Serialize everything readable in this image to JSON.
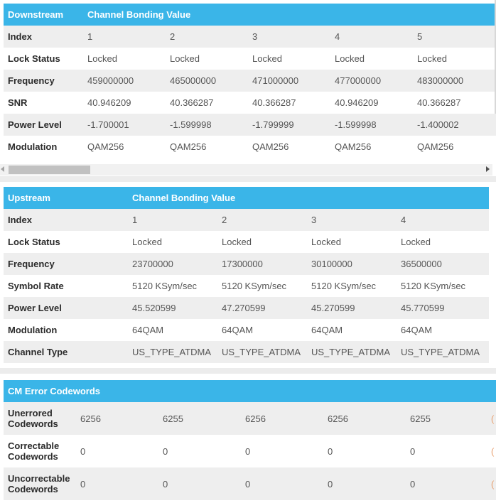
{
  "downstream": {
    "title": "Downstream",
    "value_header": "Channel Bonding Value",
    "rows": [
      {
        "label": "Index",
        "values": [
          "1",
          "2",
          "3",
          "4",
          "5"
        ]
      },
      {
        "label": "Lock Status",
        "values": [
          "Locked",
          "Locked",
          "Locked",
          "Locked",
          "Locked"
        ]
      },
      {
        "label": "Frequency",
        "values": [
          "459000000",
          "465000000",
          "471000000",
          "477000000",
          "483000000"
        ]
      },
      {
        "label": "SNR",
        "values": [
          "40.946209",
          "40.366287",
          "40.366287",
          "40.946209",
          "40.366287"
        ]
      },
      {
        "label": "Power Level",
        "values": [
          "-1.700001",
          "-1.599998",
          "-1.799999",
          "-1.599998",
          "-1.400002"
        ]
      },
      {
        "label": "Modulation",
        "values": [
          "QAM256",
          "QAM256",
          "QAM256",
          "QAM256",
          "QAM256"
        ]
      }
    ],
    "scrollbar": {
      "scroll_position": 0
    }
  },
  "upstream": {
    "title": "Upstream",
    "value_header": "Channel Bonding Value",
    "rows": [
      {
        "label": "Index",
        "values": [
          "1",
          "2",
          "3",
          "4"
        ]
      },
      {
        "label": "Lock Status",
        "values": [
          "Locked",
          "Locked",
          "Locked",
          "Locked"
        ]
      },
      {
        "label": "Frequency",
        "values": [
          "23700000",
          "17300000",
          "30100000",
          "36500000"
        ]
      },
      {
        "label": "Symbol Rate",
        "values": [
          "5120 KSym/sec",
          "5120 KSym/sec",
          "5120 KSym/sec",
          "5120 KSym/sec"
        ]
      },
      {
        "label": "Power Level",
        "values": [
          "45.520599",
          "47.270599",
          "45.270599",
          "45.770599"
        ]
      },
      {
        "label": "Modulation",
        "values": [
          "64QAM",
          "64QAM",
          "64QAM",
          "64QAM"
        ]
      },
      {
        "label": "Channel Type",
        "values": [
          "US_TYPE_ATDMA",
          "US_TYPE_ATDMA",
          "US_TYPE_ATDMA",
          "US_TYPE_ATDMA"
        ]
      }
    ]
  },
  "errors": {
    "title": "CM Error Codewords",
    "rows": [
      {
        "label_line1": "Unerrored",
        "label_line2": "Codewords",
        "values": [
          "6256",
          "6255",
          "6256",
          "6256",
          "6255"
        ]
      },
      {
        "label_line1": "Correctable",
        "label_line2": "Codewords",
        "values": [
          "0",
          "0",
          "0",
          "0",
          "0"
        ]
      },
      {
        "label_line1": "Uncorrectable",
        "label_line2": "Codewords",
        "values": [
          "0",
          "0",
          "0",
          "0",
          "0"
        ]
      }
    ]
  },
  "colors": {
    "header_bg": "#3ab5e8",
    "row_alt_bg": "#eeeeee",
    "page_bg": "#ececec"
  }
}
